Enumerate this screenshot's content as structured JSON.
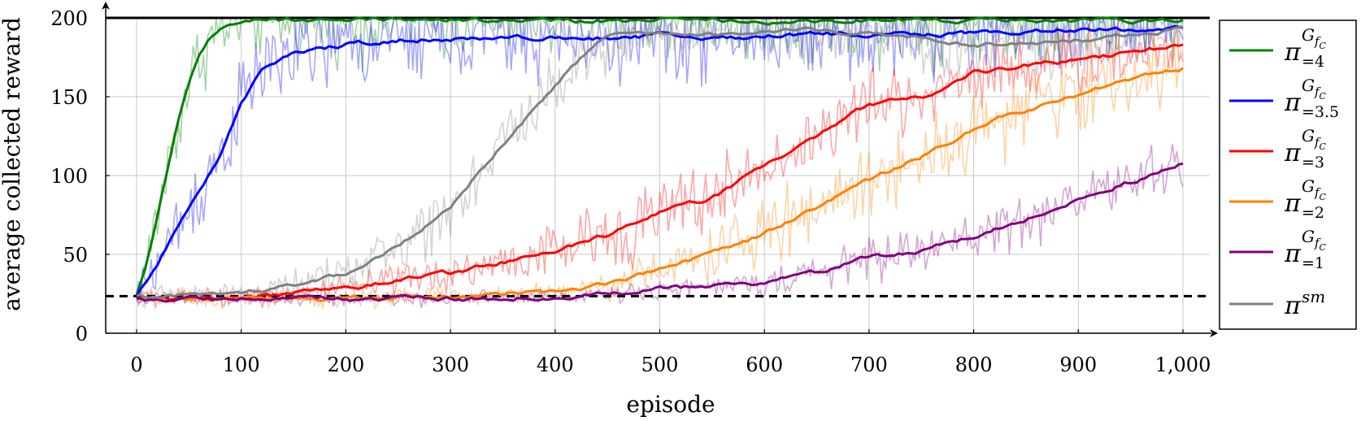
{
  "chart_data": {
    "type": "line",
    "title": "",
    "xlabel": "episode",
    "ylabel": "average collected reward",
    "xlim": [
      -30,
      1030
    ],
    "ylim": [
      0,
      200
    ],
    "x_ticks": [
      0,
      100,
      200,
      300,
      400,
      500,
      600,
      700,
      800,
      900,
      1000
    ],
    "x_tick_labels": [
      "0",
      "100",
      "200",
      "300",
      "400",
      "500",
      "600",
      "700",
      "800",
      "900",
      "1,000"
    ],
    "y_ticks": [
      0,
      50,
      100,
      150,
      200
    ],
    "y_tick_labels": [
      "0",
      "50",
      "100",
      "150",
      "200"
    ],
    "grid": true,
    "legend_position": "right-outside",
    "reference_lines": [
      {
        "y": 200,
        "style": "solid",
        "color": "#000000"
      },
      {
        "y": 23.5,
        "style": "dashed",
        "color": "#000000"
      }
    ],
    "series": [
      {
        "legend": {
          "base": "π",
          "sup": "G",
          "sup_sub": "f",
          "sup_sub_sub": "C",
          "sub": "=4"
        },
        "color": "#008000",
        "raw_noise": 14,
        "x": [
          0,
          10,
          20,
          30,
          40,
          50,
          60,
          70,
          80,
          90,
          100,
          110,
          120,
          150,
          200,
          300,
          400,
          500,
          600,
          700,
          800,
          900,
          1000
        ],
        "y": [
          24,
          45,
          75,
          105,
          135,
          158,
          176,
          186,
          192,
          196,
          198,
          199,
          199,
          199,
          199,
          199,
          198,
          199,
          198,
          199,
          198,
          198,
          198
        ]
      },
      {
        "legend": {
          "base": "π",
          "sup": "G",
          "sup_sub": "f",
          "sup_sub_sub": "C",
          "sub": "=3.5"
        },
        "color": "#0000ff",
        "raw_noise": 16,
        "x": [
          0,
          20,
          40,
          60,
          80,
          100,
          120,
          150,
          200,
          250,
          300,
          350,
          400,
          450,
          500,
          550,
          600,
          650,
          700,
          750,
          800,
          850,
          900,
          950,
          1000
        ],
        "y": [
          24,
          45,
          68,
          90,
          113,
          145,
          168,
          178,
          183,
          186,
          187,
          187,
          188,
          187,
          189,
          186,
          188,
          190,
          190,
          189,
          190,
          191,
          193,
          192,
          194
        ]
      },
      {
        "legend": {
          "base": "π",
          "sup": "G",
          "sup_sub": "f",
          "sup_sub_sub": "C",
          "sub": "=3"
        },
        "color": "#ff0000",
        "raw_noise": 13,
        "x": [
          0,
          50,
          100,
          150,
          200,
          250,
          300,
          350,
          400,
          450,
          500,
          550,
          600,
          650,
          700,
          750,
          800,
          850,
          900,
          950,
          1000
        ],
        "y": [
          22,
          22,
          23,
          25,
          28,
          33,
          38,
          45,
          52,
          62,
          76,
          86,
          105,
          125,
          145,
          150,
          165,
          170,
          173,
          178,
          183
        ]
      },
      {
        "legend": {
          "base": "π",
          "sup": "G",
          "sup_sub": "f",
          "sup_sub_sub": "C",
          "sub": "=2"
        },
        "color": "#ff8000",
        "raw_noise": 13,
        "x": [
          0,
          50,
          100,
          150,
          200,
          250,
          300,
          350,
          400,
          450,
          500,
          550,
          600,
          650,
          700,
          750,
          800,
          850,
          900,
          950,
          1000
        ],
        "y": [
          22,
          22,
          22,
          22,
          22,
          23,
          23,
          24,
          26,
          31,
          40,
          50,
          63,
          80,
          97,
          112,
          130,
          142,
          152,
          160,
          168
        ]
      },
      {
        "legend": {
          "base": "π",
          "sup": "G",
          "sup_sub": "f",
          "sup_sub_sub": "C",
          "sub": "=1"
        },
        "color": "#800080",
        "raw_noise": 10,
        "x": [
          0,
          100,
          200,
          300,
          400,
          450,
          500,
          550,
          600,
          650,
          700,
          750,
          800,
          850,
          900,
          950,
          1000
        ],
        "y": [
          22,
          22,
          22,
          22,
          23,
          25,
          28,
          29,
          32,
          38,
          48,
          52,
          62,
          72,
          86,
          96,
          108
        ]
      },
      {
        "legend": {
          "base": "π",
          "sup": "sm"
        },
        "color": "#808080",
        "raw_noise": 12,
        "x": [
          0,
          50,
          100,
          150,
          200,
          250,
          300,
          350,
          400,
          430,
          450,
          500,
          550,
          600,
          650,
          700,
          750,
          800,
          850,
          900,
          950,
          1000
        ],
        "y": [
          24,
          24,
          25,
          30,
          38,
          55,
          80,
          120,
          158,
          178,
          188,
          190,
          190,
          191,
          192,
          190,
          186,
          183,
          184,
          186,
          189,
          193
        ]
      }
    ]
  }
}
